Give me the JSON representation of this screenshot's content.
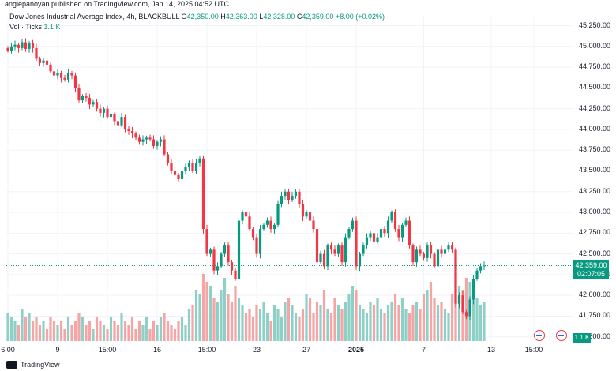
{
  "header": {
    "publish_line": "angiepanoyan published on TradingView.com, Jan 14, 2025 04:52 UTC"
  },
  "legend": {
    "symbol": "Dow Jones Industrial Average Index, 4h, BLACKBULL",
    "open_label": "O",
    "open_value": "42,350.00",
    "high_label": "H",
    "high_value": "42,363.00",
    "low_label": "L",
    "low_value": "42,328.00",
    "close_label": "C",
    "close_value": "42,359.00",
    "change": "+8.00 (+0.02%)",
    "vol_label": "Vol · Ticks",
    "vol_value": "1.1 K"
  },
  "price_tag": {
    "price": "42,359.00",
    "countdown": "02:07:05"
  },
  "vol_tag": "1.1 K",
  "footer": {
    "brand": "TradingView"
  },
  "colors": {
    "up": "#089981",
    "down": "#f23645",
    "vol_up": "#8fd0c6",
    "vol_down": "#f5a5a5"
  },
  "chart_data": {
    "type": "candlestick",
    "y_ticks": [
      "45,250.00",
      "45,000.00",
      "44,750.00",
      "44,500.00",
      "44,250.00",
      "44,000.00",
      "43,750.00",
      "43,500.00",
      "43,250.00",
      "43,000.00",
      "42,750.00",
      "42,500.00",
      "42,250.00",
      "42,000.00",
      "41,750.00",
      "41,500.00"
    ],
    "ylim": [
      41450,
      45350
    ],
    "x_ticks": [
      {
        "label": "6:00",
        "i": 0
      },
      {
        "label": "9",
        "i": 14
      },
      {
        "label": "15:00",
        "i": 28
      },
      {
        "label": "16",
        "i": 42
      },
      {
        "label": "15:00",
        "i": 56
      },
      {
        "label": "23",
        "i": 70
      },
      {
        "label": "27",
        "i": 84
      },
      {
        "label": "2025",
        "i": 98,
        "bold": true
      },
      {
        "label": "7",
        "i": 117
      },
      {
        "label": "13",
        "i": 136
      },
      {
        "label": "15:00",
        "i": 148
      }
    ],
    "closes": [
      44950,
      45000,
      45020,
      44980,
      45050,
      44970,
      45040,
      44980,
      44850,
      44800,
      44830,
      44780,
      44700,
      44650,
      44680,
      44620,
      44600,
      44680,
      44650,
      44500,
      44350,
      44400,
      44380,
      44300,
      44330,
      44250,
      44200,
      44250,
      44150,
      44180,
      44100,
      44050,
      44150,
      44000,
      43980,
      43950,
      43900,
      43850,
      43880,
      43900,
      43880,
      43800,
      43850,
      43880,
      43700,
      43600,
      43500,
      43450,
      43400,
      43500,
      43550,
      43600,
      43500,
      43600,
      43650,
      42800,
      42500,
      42550,
      42300,
      42350,
      42500,
      42600,
      42400,
      42300,
      42200,
      42900,
      43000,
      42950,
      42800,
      42700,
      42500,
      42800,
      42850,
      42900,
      42800,
      42850,
      43100,
      43200,
      43250,
      43150,
      43200,
      43250,
      43100,
      42950,
      43000,
      42900,
      42800,
      42400,
      42500,
      42350,
      42600,
      42550,
      42500,
      42600,
      42400,
      42700,
      42800,
      42900,
      42350,
      42500,
      42600,
      42700,
      42750,
      42650,
      42700,
      42800,
      42750,
      42900,
      43000,
      42800,
      42700,
      42850,
      42900,
      42600,
      42400,
      42550,
      42500,
      42450,
      42600,
      42500,
      42350,
      42550,
      42500,
      42550,
      42600,
      42550,
      41900,
      42000,
      41800,
      41750,
      41950,
      42200,
      42300,
      42350,
      42359
    ],
    "volumes": [
      7,
      6,
      5,
      4,
      8,
      6,
      7,
      5,
      6,
      4,
      5,
      3,
      6,
      5,
      4,
      5,
      3,
      6,
      4,
      5,
      7,
      6,
      4,
      5,
      3,
      6,
      5,
      4,
      3,
      6,
      5,
      4,
      7,
      5,
      4,
      6,
      3,
      5,
      4,
      6,
      3,
      5,
      4,
      6,
      7,
      5,
      4,
      3,
      5,
      6,
      4,
      8,
      9,
      13,
      12,
      17,
      15,
      14,
      11,
      10,
      13,
      16,
      12,
      10,
      14,
      11,
      9,
      7,
      8,
      6,
      9,
      8,
      10,
      7,
      5,
      9,
      8,
      6,
      10,
      11,
      9,
      7,
      6,
      8,
      12,
      11,
      7,
      10,
      9,
      13,
      8,
      7,
      11,
      9,
      8,
      10,
      12,
      14,
      13,
      9,
      8,
      7,
      10,
      9,
      11,
      8,
      7,
      9,
      10,
      12,
      9,
      11,
      8,
      7,
      9,
      10,
      8,
      12,
      13,
      15,
      11,
      9,
      10,
      8,
      7,
      12,
      10,
      14,
      13,
      16,
      15,
      12,
      11,
      9,
      10
    ]
  }
}
